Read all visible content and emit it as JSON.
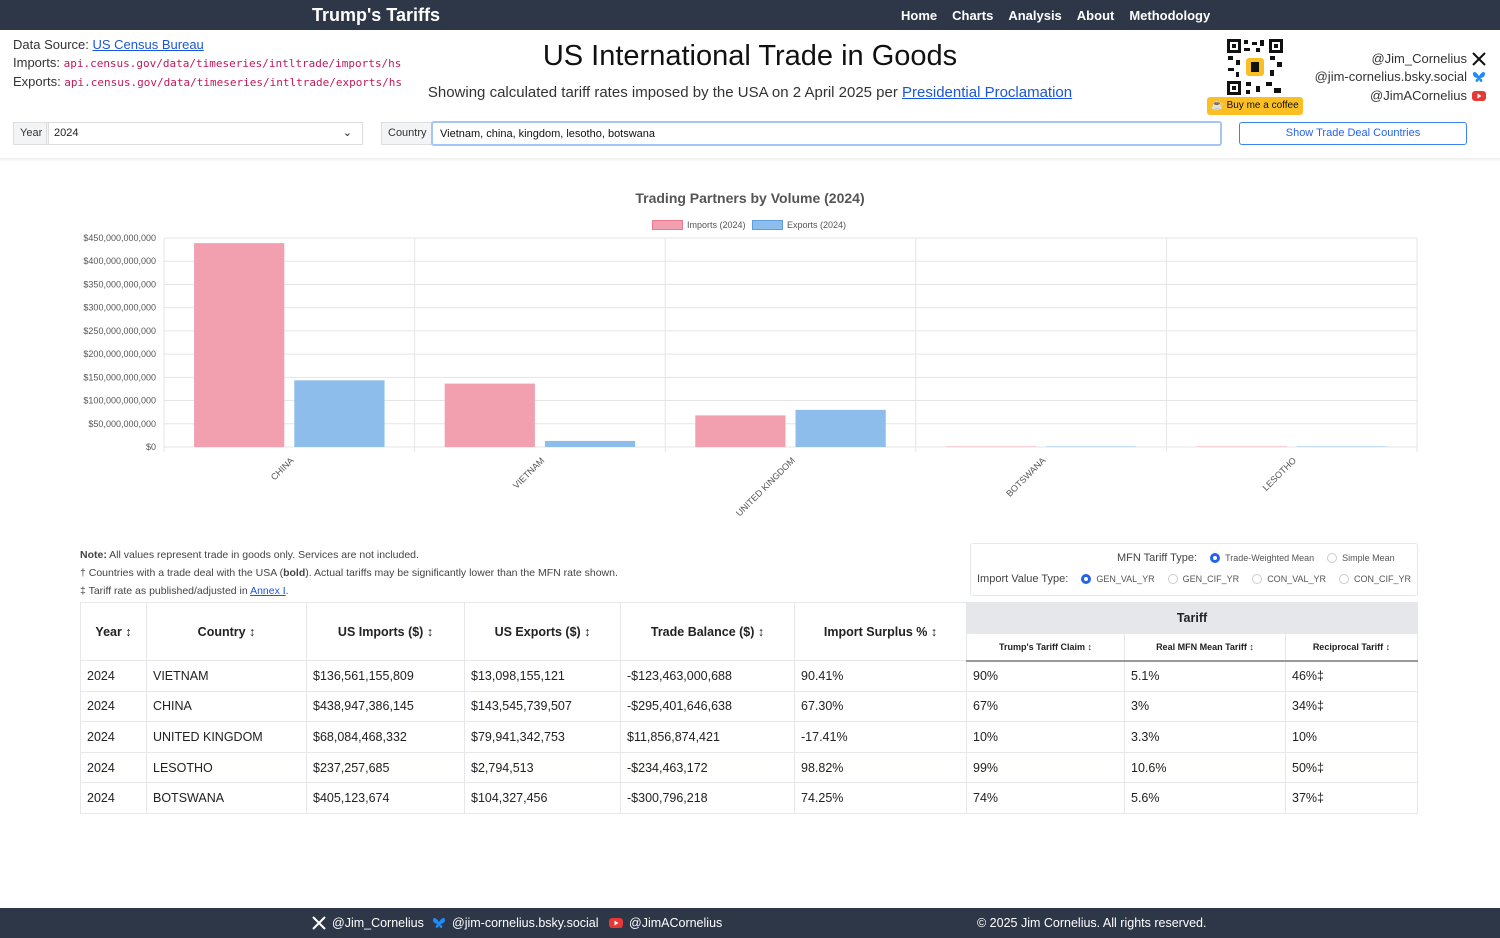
{
  "nav": {
    "brand": "Trump's Tariffs",
    "links": [
      "Home",
      "Charts",
      "Analysis",
      "About",
      "Methodology"
    ]
  },
  "source": {
    "label": "Data Source: ",
    "link": "US Census Bureau",
    "imports_label": "Imports: ",
    "imports_url": "api.census.gov/data/timeseries/intltrade/imports/hs",
    "exports_label": "Exports: ",
    "exports_url": "api.census.gov/data/timeseries/intltrade/exports/hs"
  },
  "header": {
    "title": "US International Trade in Goods",
    "subtitle": "Showing calculated tariff rates imposed by the USA on 2 April 2025 per ",
    "subtitle_link": "Presidential Proclamation"
  },
  "coffee": "Buy me a coffee",
  "social": {
    "x": "@Jim_Cornelius",
    "bsky": "@jim-cornelius.bsky.social",
    "youtube": "@JimACornelius"
  },
  "controls": {
    "year_label": "Year",
    "year_value": "2024",
    "country_label": "Country",
    "country_value": "Vietnam, china, kingdom, lesotho, botswana",
    "trade_button": "Show Trade Deal Countries"
  },
  "chart_data": {
    "type": "bar",
    "title": "Trading Partners by Volume (2024)",
    "categories": [
      "CHINA",
      "VIETNAM",
      "UNITED KINGDOM",
      "BOTSWANA",
      "LESOTHO"
    ],
    "series": [
      {
        "name": "Imports (2024)",
        "color": "#f2a0b0",
        "values": [
          438947386145,
          136561155809,
          68084468332,
          405123674,
          237257685
        ]
      },
      {
        "name": "Exports (2024)",
        "color": "#8dbdeb",
        "values": [
          143545739507,
          13098155121,
          79941342753,
          104327456,
          2794513
        ]
      }
    ],
    "yticks": [
      "$0",
      "$50,000,000,000",
      "$100,000,000,000",
      "$150,000,000,000",
      "$200,000,000,000",
      "$250,000,000,000",
      "$300,000,000,000",
      "$350,000,000,000",
      "$400,000,000,000",
      "$450,000,000,000"
    ],
    "ylim": [
      0,
      450000000000
    ],
    "grid": true,
    "legend": "top"
  },
  "notes": {
    "note_bold": "Note:",
    "note": " All values represent trade in goods only. Services are not included.",
    "dagger_a": "† Countries with a trade deal with the USA (",
    "dagger_bold": "bold",
    "dagger_b": "). Actual tariffs may be significantly lower than the MFN rate shown.",
    "ddagger": "‡ Tariff rate as published/adjusted in ",
    "ddagger_link": "Annex I",
    "ddagger_end": "."
  },
  "mfn": {
    "type_label": "MFN Tariff Type:",
    "type_options": [
      "Trade-Weighted Mean",
      "Simple Mean"
    ],
    "import_label": "Import Value Type:",
    "import_options": [
      "GEN_VAL_YR",
      "GEN_CIF_YR",
      "CON_VAL_YR",
      "CON_CIF_YR"
    ]
  },
  "table": {
    "headers": [
      "Year ↕",
      "Country ↕",
      "US Imports ($) ↕",
      "US Exports ($) ↕",
      "Trade Balance ($) ↕",
      "Import Surplus % ↕"
    ],
    "tariff_header": "Tariff",
    "tariff_sub": [
      "Trump's Tariff Claim ↕",
      "Real MFN Mean Tariff ↕",
      "Reciprocal Tariff ↕"
    ],
    "rows": [
      {
        "year": "2024",
        "country": "VIETNAM",
        "imports": "$136,561,155,809",
        "exports": "$13,098,155,121",
        "balance": "-$123,463,000,688",
        "surplus": "90.41%",
        "claim": "90%",
        "mfn": "5.1%",
        "recip": "46%‡",
        "sign": "neg"
      },
      {
        "year": "2024",
        "country": "CHINA",
        "imports": "$438,947,386,145",
        "exports": "$143,545,739,507",
        "balance": "-$295,401,646,638",
        "surplus": "67.30%",
        "claim": "67%",
        "mfn": "3%",
        "recip": "34%‡",
        "sign": "neg"
      },
      {
        "year": "2024",
        "country": "UNITED KINGDOM",
        "imports": "$68,084,468,332",
        "exports": "$79,941,342,753",
        "balance": "$11,856,874,421",
        "surplus": "-17.41%",
        "claim": "10%",
        "mfn": "3.3%",
        "recip": "10%",
        "sign": "pos"
      },
      {
        "year": "2024",
        "country": "LESOTHO",
        "imports": "$237,257,685",
        "exports": "$2,794,513",
        "balance": "-$234,463,172",
        "surplus": "98.82%",
        "claim": "99%",
        "mfn": "10.6%",
        "recip": "50%‡",
        "sign": "neg"
      },
      {
        "year": "2024",
        "country": "BOTSWANA",
        "imports": "$405,123,674",
        "exports": "$104,327,456",
        "balance": "-$300,796,218",
        "surplus": "74.25%",
        "claim": "74%",
        "mfn": "5.6%",
        "recip": "37%‡",
        "sign": "neg"
      }
    ]
  },
  "footer": {
    "x": "@Jim_Cornelius",
    "bsky": "@jim-cornelius.bsky.social",
    "youtube": "@JimACornelius",
    "copyright": "© 2025 Jim Cornelius. All rights reserved."
  }
}
